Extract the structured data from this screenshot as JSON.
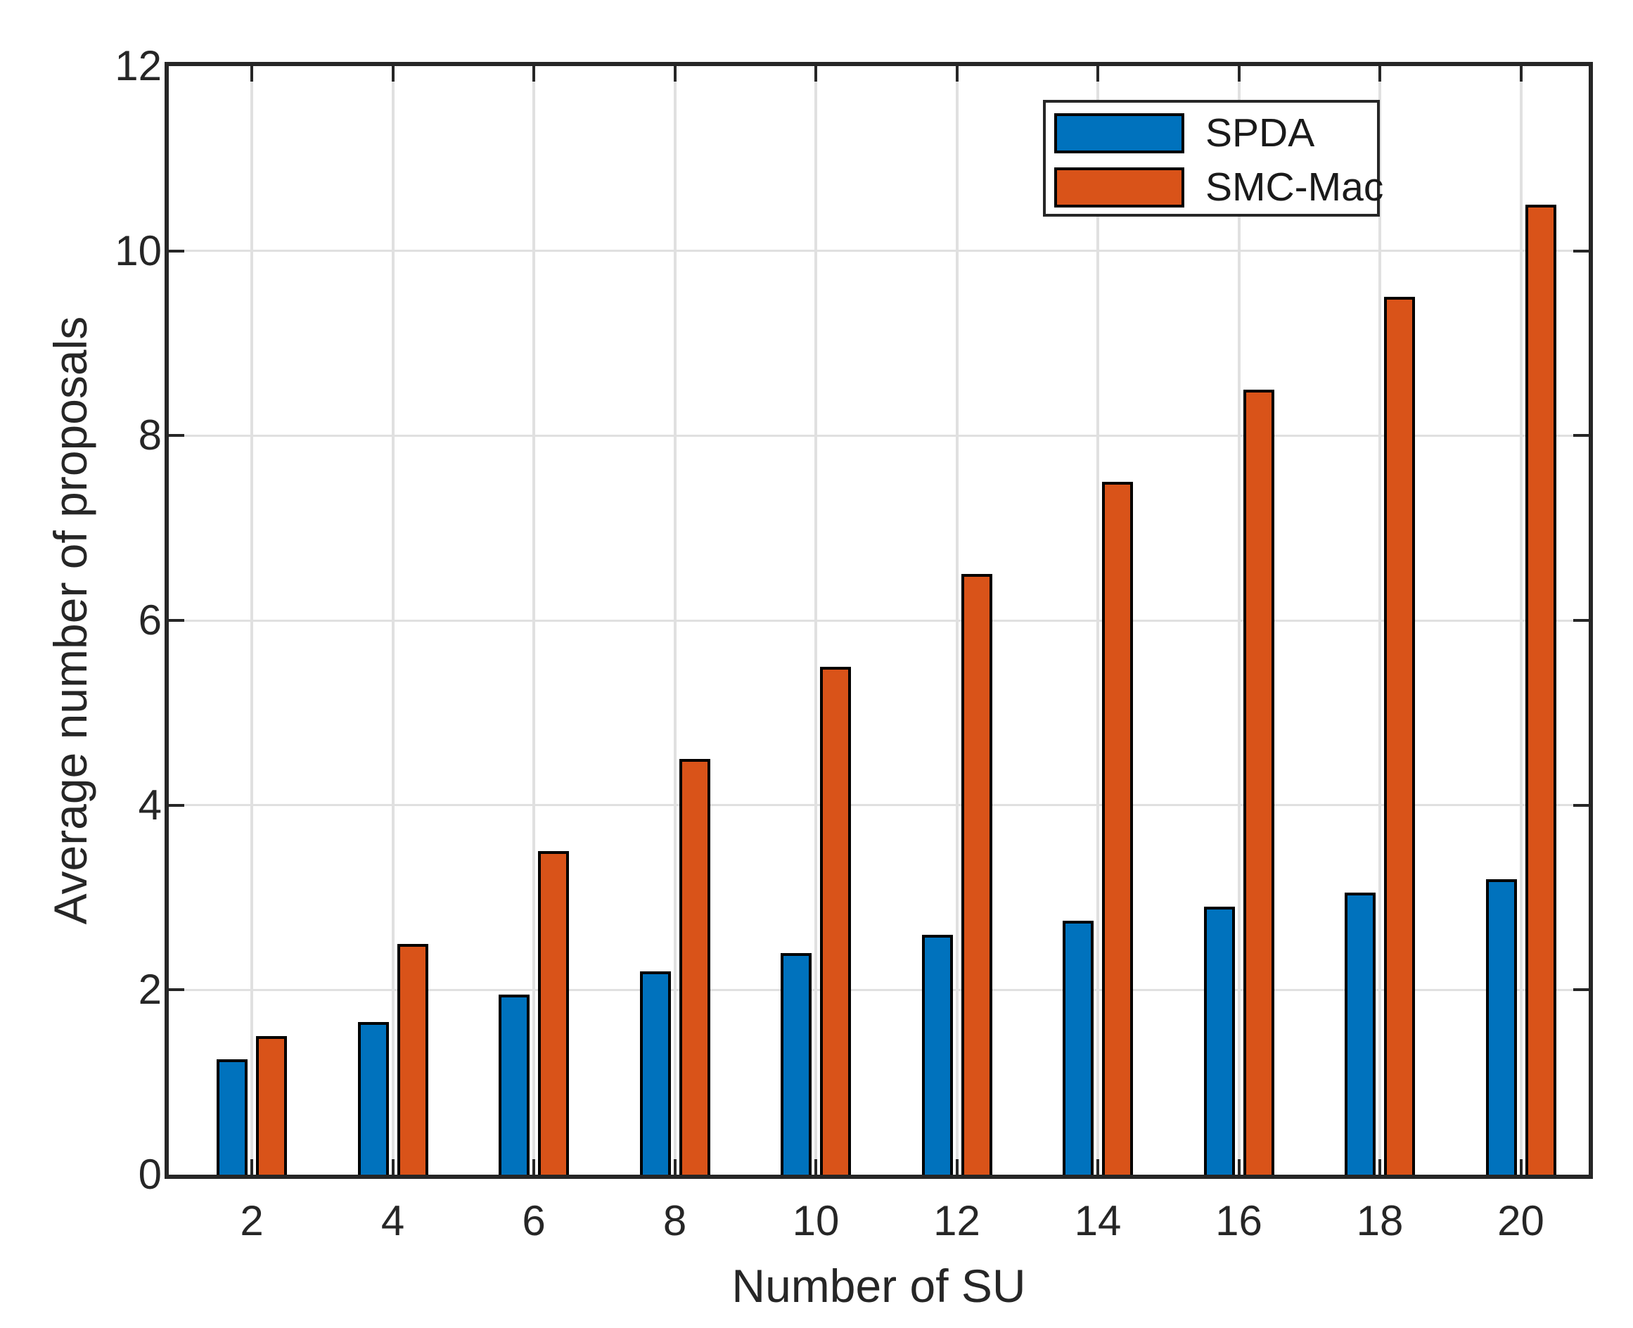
{
  "chart_data": {
    "type": "bar",
    "title": "",
    "xlabel": "Number of SU",
    "ylabel": "Average number of proposals",
    "categories": [
      2,
      4,
      6,
      8,
      10,
      12,
      14,
      16,
      18,
      20
    ],
    "series": [
      {
        "name": "SPDA",
        "color": "#0072BD",
        "values": [
          1.25,
          1.65,
          1.95,
          2.2,
          2.4,
          2.6,
          2.75,
          2.9,
          3.05,
          3.2
        ]
      },
      {
        "name": "SMC-Mac",
        "color": "#D95319",
        "values": [
          1.5,
          2.5,
          3.5,
          4.5,
          5.5,
          6.5,
          7.5,
          8.5,
          9.5,
          10.5
        ]
      }
    ],
    "ylim": [
      0,
      12
    ],
    "yticks": [
      0,
      2,
      4,
      6,
      8,
      10,
      12
    ],
    "grid": true,
    "legend_position": "top-right"
  },
  "colors": {
    "axis": "#262626",
    "grid": "#E0E0E0",
    "bar_edge": "#000000",
    "background": "#FFFFFF",
    "series_blue": "#0072BD",
    "series_orange": "#D95319"
  }
}
